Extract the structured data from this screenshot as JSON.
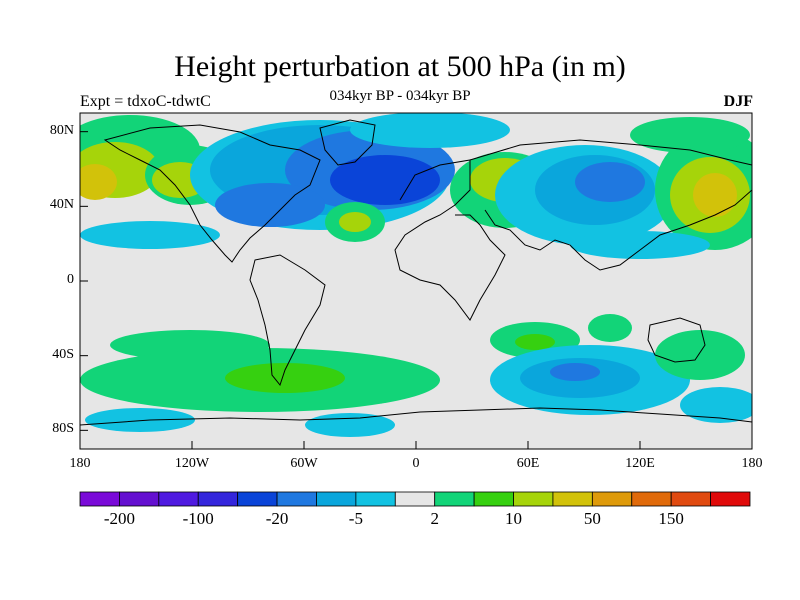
{
  "figure": {
    "title": "Height perturbation at 500 hPa (in m)",
    "subtitle": "034kyr BP - 034kyr BP",
    "left_label": "Expt = tdxoC-tdwtC",
    "right_label": "DJF"
  },
  "axes": {
    "lat_ticks": [
      {
        "value": 80,
        "label": "80N"
      },
      {
        "value": 40,
        "label": "40N"
      },
      {
        "value": 0,
        "label": "0"
      },
      {
        "value": -40,
        "label": "40S"
      },
      {
        "value": -80,
        "label": "80S"
      }
    ],
    "lon_ticks": [
      {
        "value": -180,
        "label": "180"
      },
      {
        "value": -120,
        "label": "120W"
      },
      {
        "value": -60,
        "label": "60W"
      },
      {
        "value": 0,
        "label": "0"
      },
      {
        "value": 60,
        "label": "60E"
      },
      {
        "value": 120,
        "label": "120E"
      },
      {
        "value": 180,
        "label": "180"
      }
    ],
    "lon_range": [
      -180,
      180
    ],
    "lat_range": [
      -90,
      90
    ]
  },
  "colorbar": {
    "colors": [
      "#7a0ad8",
      "#6410d0",
      "#4f1ae0",
      "#3426dc",
      "#0a44d8",
      "#1f78e0",
      "#0aa6dc",
      "#12c2e2",
      "#e6e6e6",
      "#12d478",
      "#36d010",
      "#a6d40a",
      "#d2c20a",
      "#de9a0a",
      "#e06a0a",
      "#e04a10",
      "#e00a0a"
    ],
    "tick_labels": [
      {
        "index": 1,
        "label": "-200"
      },
      {
        "index": 3,
        "label": "-100"
      },
      {
        "index": 5,
        "label": "-20"
      },
      {
        "index": 7,
        "label": "-5"
      },
      {
        "index": 9,
        "label": "2"
      },
      {
        "index": 11,
        "label": "10"
      },
      {
        "index": 13,
        "label": "50"
      },
      {
        "index": 15,
        "label": "150"
      }
    ]
  },
  "field": {
    "background_color": "#e6e6e6",
    "colors": {
      "light_blue": "#12c2e2",
      "mid_blue": "#0aa6dc",
      "blue": "#1f78e0",
      "dark_blue": "#0a44d8",
      "light_green": "#12d478",
      "green": "#36d010",
      "yellow_green": "#a6d40a",
      "yellow": "#d2c20a"
    }
  }
}
